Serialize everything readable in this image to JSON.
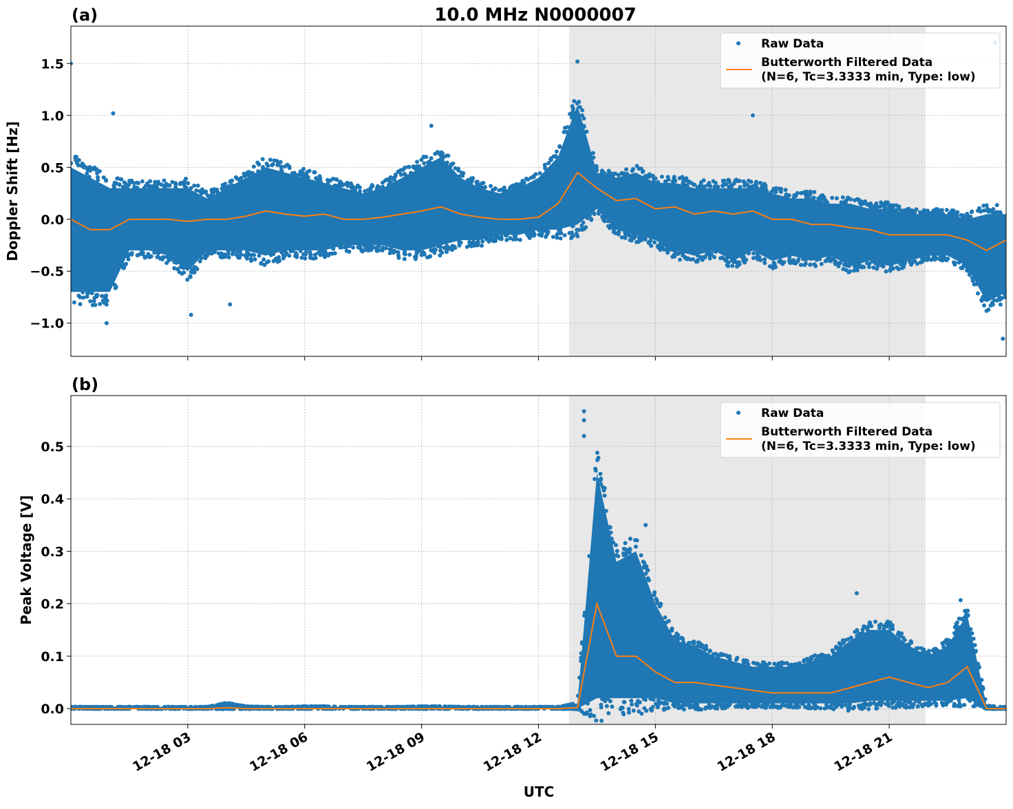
{
  "chart_data": [
    {
      "type": "scatter",
      "panel_label": "(a)",
      "title": "10.0 MHz N0000007",
      "xlabel": "",
      "ylabel": "Doppler Shift [Hz]",
      "ylim": [
        -1.32,
        1.86
      ],
      "yticks": [
        -1.0,
        -0.5,
        0.0,
        0.5,
        1.0,
        1.5
      ],
      "ytick_labels": [
        "−1.0",
        "−0.5",
        "0.0",
        "0.5",
        "1.0",
        "1.5"
      ],
      "xlim": [
        "12-18 00:00",
        "12-19 00:00"
      ],
      "grid": true,
      "legend_placement": "top-right",
      "shaded_span": [
        "12-18 12:47",
        "12-18 21:56"
      ],
      "x": [
        "12-18 00:00",
        "12-18 00:30",
        "12-18 01:00",
        "12-18 01:30",
        "12-18 02:00",
        "12-18 02:30",
        "12-18 03:00",
        "12-18 03:30",
        "12-18 04:00",
        "12-18 04:30",
        "12-18 05:00",
        "12-18 05:30",
        "12-18 06:00",
        "12-18 06:30",
        "12-18 07:00",
        "12-18 07:30",
        "12-18 08:00",
        "12-18 08:30",
        "12-18 09:00",
        "12-18 09:30",
        "12-18 10:00",
        "12-18 10:30",
        "12-18 11:00",
        "12-18 11:30",
        "12-18 12:00",
        "12-18 12:30",
        "12-18 13:00",
        "12-18 13:30",
        "12-18 14:00",
        "12-18 14:30",
        "12-18 15:00",
        "12-18 15:30",
        "12-18 16:00",
        "12-18 16:30",
        "12-18 17:00",
        "12-18 17:30",
        "12-18 18:00",
        "12-18 18:30",
        "12-18 19:00",
        "12-18 19:30",
        "12-18 20:00",
        "12-18 20:30",
        "12-18 21:00",
        "12-18 21:30",
        "12-18 22:00",
        "12-18 22:30",
        "12-18 23:00",
        "12-18 23:30",
        "12-19 00:00"
      ],
      "series": [
        {
          "name": "Raw Data",
          "kind": "scatter",
          "color": "#1f77b4",
          "lower": [
            -0.7,
            -0.7,
            -0.7,
            -0.3,
            -0.3,
            -0.35,
            -0.5,
            -0.3,
            -0.3,
            -0.3,
            -0.35,
            -0.3,
            -0.3,
            -0.3,
            -0.25,
            -0.25,
            -0.25,
            -0.3,
            -0.3,
            -0.25,
            -0.2,
            -0.2,
            -0.15,
            -0.15,
            -0.1,
            -0.1,
            -0.05,
            0.1,
            -0.1,
            -0.15,
            -0.2,
            -0.3,
            -0.35,
            -0.3,
            -0.4,
            -0.3,
            -0.4,
            -0.35,
            -0.4,
            -0.35,
            -0.45,
            -0.4,
            -0.45,
            -0.4,
            -0.35,
            -0.35,
            -0.45,
            -0.8,
            -0.7
          ],
          "upper": [
            0.5,
            0.4,
            0.3,
            0.3,
            0.3,
            0.3,
            0.3,
            0.2,
            0.3,
            0.4,
            0.5,
            0.45,
            0.4,
            0.35,
            0.3,
            0.25,
            0.3,
            0.4,
            0.5,
            0.6,
            0.4,
            0.3,
            0.25,
            0.3,
            0.4,
            0.6,
            1.1,
            0.45,
            0.4,
            0.45,
            0.35,
            0.35,
            0.3,
            0.3,
            0.3,
            0.3,
            0.25,
            0.2,
            0.2,
            0.15,
            0.15,
            0.1,
            0.1,
            0.05,
            0.05,
            0.05,
            0.0,
            0.05,
            0.05
          ],
          "outliers": [
            [
              "12-18 00:00",
              1.5
            ],
            [
              "12-18 01:05",
              1.02
            ],
            [
              "12-18 00:55",
              -1.0
            ],
            [
              "12-18 13:00",
              1.52
            ],
            [
              "12-18 17:30",
              1.0
            ],
            [
              "12-18 04:05",
              -0.82
            ],
            [
              "12-18 23:43",
              1.7
            ],
            [
              "12-18 23:55",
              -1.15
            ],
            [
              "12-18 09:15",
              0.9
            ],
            [
              "12-18 03:05",
              -0.92
            ]
          ]
        },
        {
          "name": "Butterworth Filtered Data\n(N=6, Tc=3.3333 min, Type: low)",
          "kind": "line",
          "color": "#ff7f0e",
          "values": [
            0.0,
            -0.1,
            -0.1,
            0.0,
            0.0,
            0.0,
            -0.02,
            0.0,
            0.0,
            0.03,
            0.08,
            0.05,
            0.03,
            0.05,
            0.0,
            0.0,
            0.02,
            0.05,
            0.08,
            0.12,
            0.05,
            0.02,
            0.0,
            0.0,
            0.02,
            0.15,
            0.45,
            0.3,
            0.18,
            0.2,
            0.1,
            0.12,
            0.05,
            0.08,
            0.05,
            0.08,
            0.0,
            0.0,
            -0.05,
            -0.05,
            -0.08,
            -0.1,
            -0.15,
            -0.15,
            -0.15,
            -0.15,
            -0.2,
            -0.3,
            -0.2
          ]
        }
      ]
    },
    {
      "type": "scatter",
      "panel_label": "(b)",
      "xlabel": "UTC",
      "ylabel": "Peak Voltage [V]",
      "ylim": [
        -0.03,
        0.597
      ],
      "yticks": [
        0.0,
        0.1,
        0.2,
        0.3,
        0.4,
        0.5
      ],
      "ytick_labels": [
        "0.0",
        "0.1",
        "0.2",
        "0.3",
        "0.4",
        "0.5"
      ],
      "xticks": [
        "12-18 03",
        "12-18 06",
        "12-18 09",
        "12-18 12",
        "12-18 15",
        "12-18 18",
        "12-18 21"
      ],
      "xlim": [
        "12-18 00:00",
        "12-19 00:00"
      ],
      "grid": true,
      "legend_placement": "top-right",
      "shaded_span": [
        "12-18 12:47",
        "12-18 21:56"
      ],
      "x": [
        "12-18 00:00",
        "12-18 00:30",
        "12-18 01:00",
        "12-18 01:30",
        "12-18 02:00",
        "12-18 02:30",
        "12-18 03:00",
        "12-18 03:30",
        "12-18 04:00",
        "12-18 04:30",
        "12-18 05:00",
        "12-18 05:30",
        "12-18 06:00",
        "12-18 06:30",
        "12-18 07:00",
        "12-18 07:30",
        "12-18 08:00",
        "12-18 08:30",
        "12-18 09:00",
        "12-18 09:30",
        "12-18 10:00",
        "12-18 10:30",
        "12-18 11:00",
        "12-18 11:30",
        "12-18 12:00",
        "12-18 12:30",
        "12-18 13:00",
        "12-18 13:30",
        "12-18 14:00",
        "12-18 14:30",
        "12-18 15:00",
        "12-18 15:30",
        "12-18 16:00",
        "12-18 16:30",
        "12-18 17:00",
        "12-18 17:30",
        "12-18 18:00",
        "12-18 18:30",
        "12-18 19:00",
        "12-18 19:30",
        "12-18 20:00",
        "12-18 20:30",
        "12-18 21:00",
        "12-18 21:30",
        "12-18 22:00",
        "12-18 22:30",
        "12-18 23:00",
        "12-18 23:30",
        "12-19 00:00"
      ],
      "series": [
        {
          "name": "Raw Data",
          "kind": "scatter",
          "color": "#1f77b4",
          "lower": [
            0,
            0,
            0,
            0,
            0,
            0,
            0,
            0,
            0,
            0,
            0,
            0,
            0,
            0,
            0,
            0,
            0,
            0,
            0,
            0,
            0,
            0,
            0,
            0,
            0,
            0,
            0,
            0.02,
            0.02,
            0.02,
            0.02,
            0.01,
            0.01,
            0.01,
            0.01,
            0.01,
            0.01,
            0.01,
            0.01,
            0.01,
            0.01,
            0.015,
            0.015,
            0.015,
            0.015,
            0.015,
            0.02,
            0,
            0
          ],
          "upper": [
            0.003,
            0.003,
            0.003,
            0.003,
            0.003,
            0.003,
            0.003,
            0.003,
            0.01,
            0.004,
            0.003,
            0.003,
            0.004,
            0.004,
            0.003,
            0.003,
            0.003,
            0.003,
            0.004,
            0.004,
            0.003,
            0.003,
            0.003,
            0.003,
            0.003,
            0.003,
            0.01,
            0.45,
            0.28,
            0.3,
            0.2,
            0.13,
            0.12,
            0.1,
            0.09,
            0.08,
            0.08,
            0.08,
            0.09,
            0.1,
            0.13,
            0.15,
            0.15,
            0.12,
            0.1,
            0.12,
            0.18,
            0.005,
            0.003
          ],
          "outliers": [
            [
              "12-18 13:10",
              0.567
            ],
            [
              "12-18 13:10",
              0.55
            ],
            [
              "12-18 13:10",
              0.52
            ],
            [
              "12-18 14:45",
              0.35
            ],
            [
              "12-18 20:10",
              0.22
            ],
            [
              "12-18 22:50",
              0.207
            ]
          ]
        },
        {
          "name": "Butterworth Filtered Data\n(N=6, Tc=3.3333 min, Type: low)",
          "kind": "line",
          "color": "#ff7f0e",
          "values": [
            0,
            0,
            0,
            0,
            0,
            0,
            0,
            0,
            0.002,
            0,
            0,
            0,
            0,
            0,
            0,
            0,
            0,
            0,
            0,
            0,
            0,
            0,
            0,
            0,
            0,
            0,
            0.002,
            0.2,
            0.1,
            0.1,
            0.07,
            0.05,
            0.05,
            0.045,
            0.04,
            0.035,
            0.03,
            0.03,
            0.03,
            0.03,
            0.04,
            0.05,
            0.06,
            0.05,
            0.04,
            0.05,
            0.08,
            0.0,
            0.0
          ]
        }
      ]
    }
  ],
  "legend": {
    "raw_label": "Raw Data",
    "filtered_line1": "Butterworth Filtered Data",
    "filtered_line2": "(N=6, Tc=3.3333 min, Type: low)"
  }
}
